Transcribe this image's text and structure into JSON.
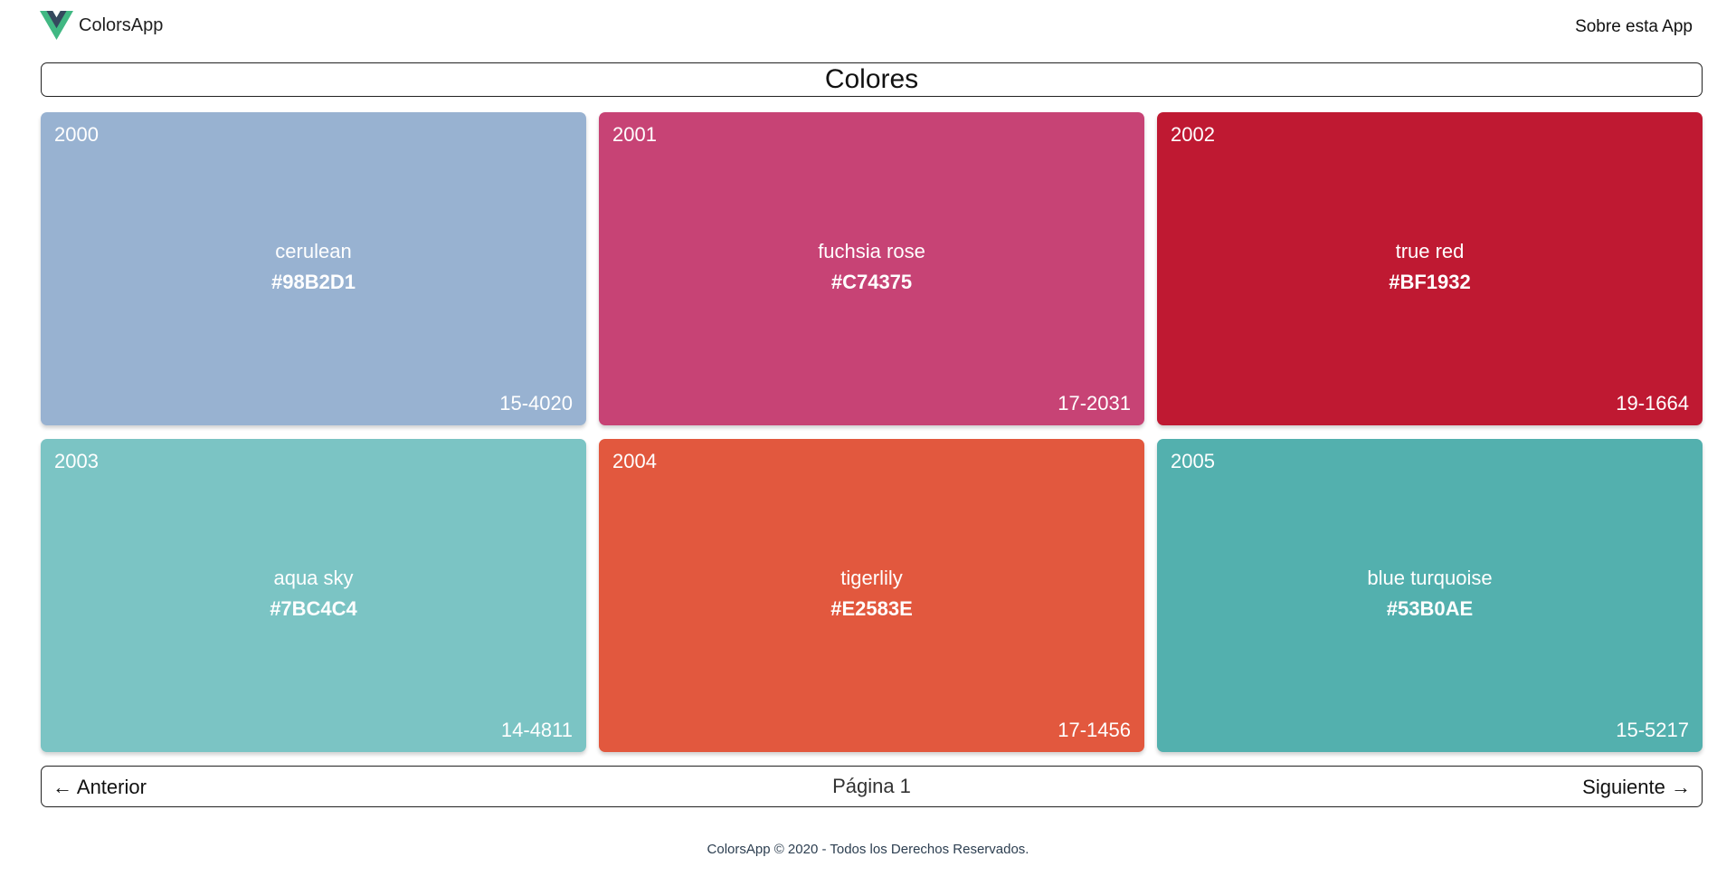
{
  "app": {
    "name": "ColorsApp",
    "logo_icon": "vue-logo-icon",
    "logo_colors": {
      "outer": "#41B883",
      "inner": "#35495E"
    }
  },
  "nav": {
    "about_label": "Sobre esta App"
  },
  "page_title": "Colores",
  "colors": [
    {
      "year": "2000",
      "name": "cerulean",
      "hex": "#98B2D1",
      "code": "15-4020"
    },
    {
      "year": "2001",
      "name": "fuchsia rose",
      "hex": "#C74375",
      "code": "17-2031"
    },
    {
      "year": "2002",
      "name": "true red",
      "hex": "#BF1932",
      "code": "19-1664"
    },
    {
      "year": "2003",
      "name": "aqua sky",
      "hex": "#7BC4C4",
      "code": "14-4811"
    },
    {
      "year": "2004",
      "name": "tigerlily",
      "hex": "#E2583E",
      "code": "17-1456"
    },
    {
      "year": "2005",
      "name": "blue turquoise",
      "hex": "#53B0AE",
      "code": "15-5217"
    }
  ],
  "pagination": {
    "prev_label": "← Anterior",
    "page_label": "Página 1",
    "next_label": "Siguiente →"
  },
  "footer": {
    "text": "ColorsApp © 2020 - Todos los Derechos Reservados."
  }
}
